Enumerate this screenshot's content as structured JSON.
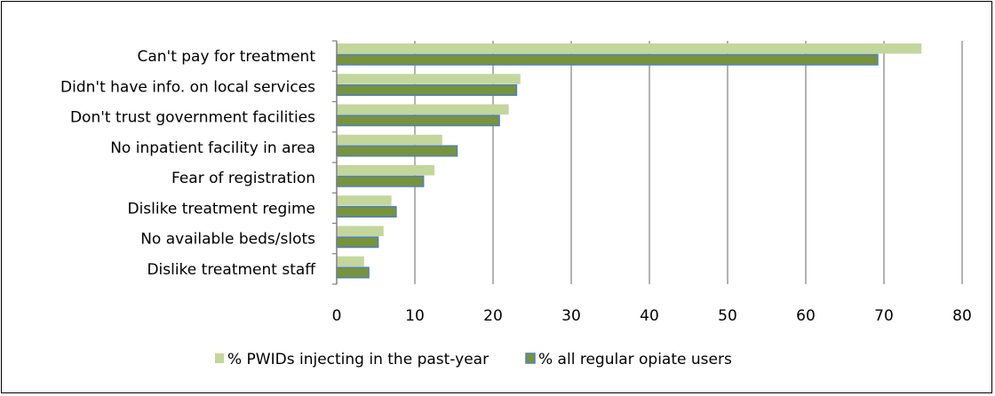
{
  "chart_data": {
    "type": "bar",
    "orientation": "horizontal",
    "categories": [
      "Can't pay for treatment",
      "Didn't have info. on local services",
      "Don't trust government facilities",
      "No inpatient facility in area",
      "Fear of registration",
      "Dislike treatment regime",
      "No available beds/slots",
      "Dislike treatment staff"
    ],
    "series": [
      {
        "name": "% PWIDs injecting in the past-year",
        "color": "#c3d69b",
        "values": [
          74.8,
          23.5,
          22.0,
          13.5,
          12.5,
          7.0,
          6.0,
          3.5
        ]
      },
      {
        "name": "% all regular opiate users",
        "color": "#77933c",
        "border": "#4f81bd",
        "values": [
          69.2,
          23.0,
          20.8,
          15.4,
          11.1,
          7.6,
          5.3,
          4.1
        ]
      }
    ],
    "xticks": [
      "0",
      "10",
      "20",
      "30",
      "40",
      "50",
      "60",
      "70",
      "80"
    ],
    "xlim": [
      0,
      80
    ],
    "grid": true,
    "legend": "bottom",
    "title": "",
    "xlabel": "",
    "ylabel": ""
  }
}
